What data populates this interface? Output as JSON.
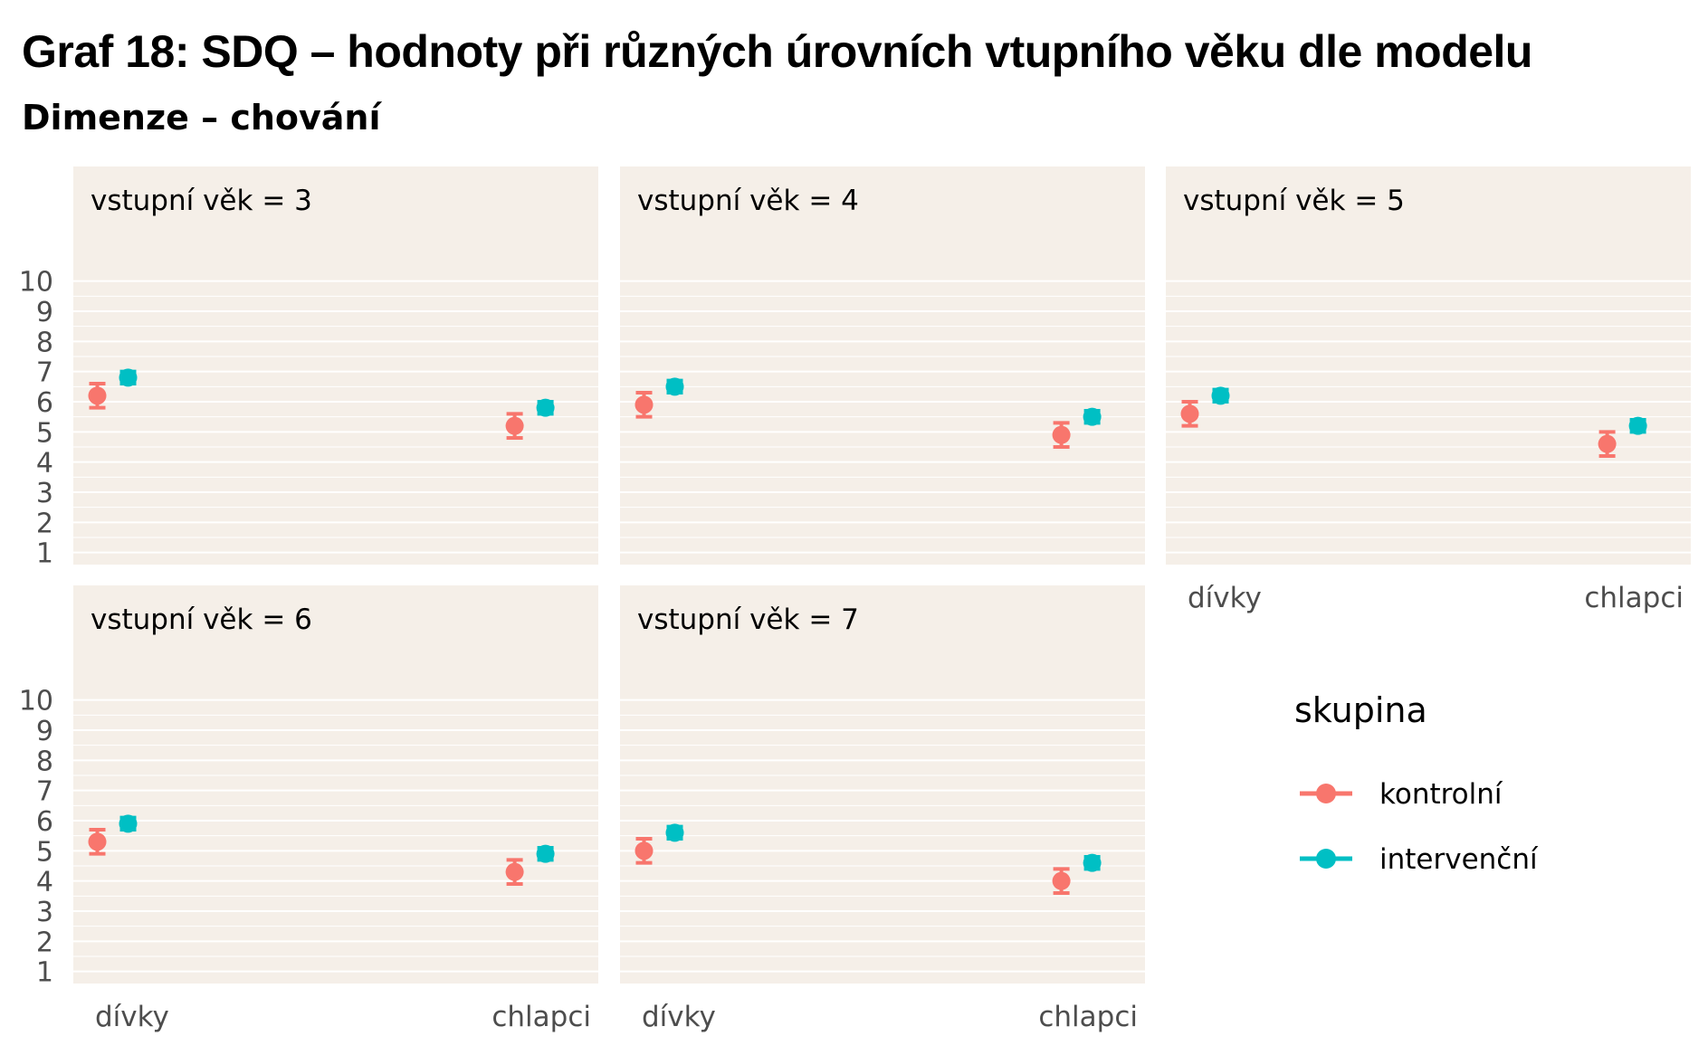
{
  "title": "Graf 18: SDQ – hodnoty při různých úrovních vtupního věku dle modelu",
  "subtitle": "Dimenze – chování",
  "colors": {
    "kontrolni": "#F8766D",
    "intervencni": "#00BFC4",
    "panel_background": "#F5EFE8",
    "gridline": "#FFFFFF",
    "text": "#4D4D4D"
  },
  "chart_data": {
    "type": "scatter",
    "error_bars": true,
    "facet_variable": "vstupní věk",
    "categories": [
      "dívky",
      "chlapci"
    ],
    "ylim": [
      0.6,
      11.4
    ],
    "y_ticks": [
      1,
      2,
      3,
      4,
      5,
      6,
      7,
      8,
      9,
      10
    ],
    "grid": true,
    "legend": {
      "title": "skupina",
      "position": "right",
      "entries": [
        {
          "name": "kontrolní",
          "color": "#F8766D"
        },
        {
          "name": "intervenční",
          "color": "#00BFC4"
        }
      ]
    },
    "facets": [
      {
        "label": "vstupní věk = 3",
        "series": [
          {
            "name": "kontrolní",
            "values": [
              6.2,
              5.2
            ],
            "lower": [
              5.8,
              4.8
            ],
            "upper": [
              6.6,
              5.6
            ]
          },
          {
            "name": "intervenční",
            "values": [
              6.8,
              5.8
            ],
            "lower": [
              6.6,
              5.6
            ],
            "upper": [
              7.0,
              6.0
            ]
          }
        ]
      },
      {
        "label": "vstupní věk = 4",
        "series": [
          {
            "name": "kontrolní",
            "values": [
              5.9,
              4.9
            ],
            "lower": [
              5.5,
              4.5
            ],
            "upper": [
              6.3,
              5.3
            ]
          },
          {
            "name": "intervenční",
            "values": [
              6.5,
              5.5
            ],
            "lower": [
              6.3,
              5.3
            ],
            "upper": [
              6.7,
              5.7
            ]
          }
        ]
      },
      {
        "label": "vstupní věk = 5",
        "series": [
          {
            "name": "kontrolní",
            "values": [
              5.6,
              4.6
            ],
            "lower": [
              5.2,
              4.2
            ],
            "upper": [
              6.0,
              5.0
            ]
          },
          {
            "name": "intervenční",
            "values": [
              6.2,
              5.2
            ],
            "lower": [
              6.0,
              5.0
            ],
            "upper": [
              6.4,
              5.4
            ]
          }
        ]
      },
      {
        "label": "vstupní věk = 6",
        "series": [
          {
            "name": "kontrolní",
            "values": [
              5.3,
              4.3
            ],
            "lower": [
              4.9,
              3.9
            ],
            "upper": [
              5.7,
              4.7
            ]
          },
          {
            "name": "intervenční",
            "values": [
              5.9,
              4.9
            ],
            "lower": [
              5.7,
              4.7
            ],
            "upper": [
              6.1,
              5.1
            ]
          }
        ]
      },
      {
        "label": "vstupní věk = 7",
        "series": [
          {
            "name": "kontrolní",
            "values": [
              5.0,
              4.0
            ],
            "lower": [
              4.6,
              3.6
            ],
            "upper": [
              5.4,
              4.4
            ]
          },
          {
            "name": "intervenční",
            "values": [
              5.6,
              4.6
            ],
            "lower": [
              5.4,
              4.4
            ],
            "upper": [
              5.8,
              4.8
            ]
          }
        ]
      }
    ]
  }
}
